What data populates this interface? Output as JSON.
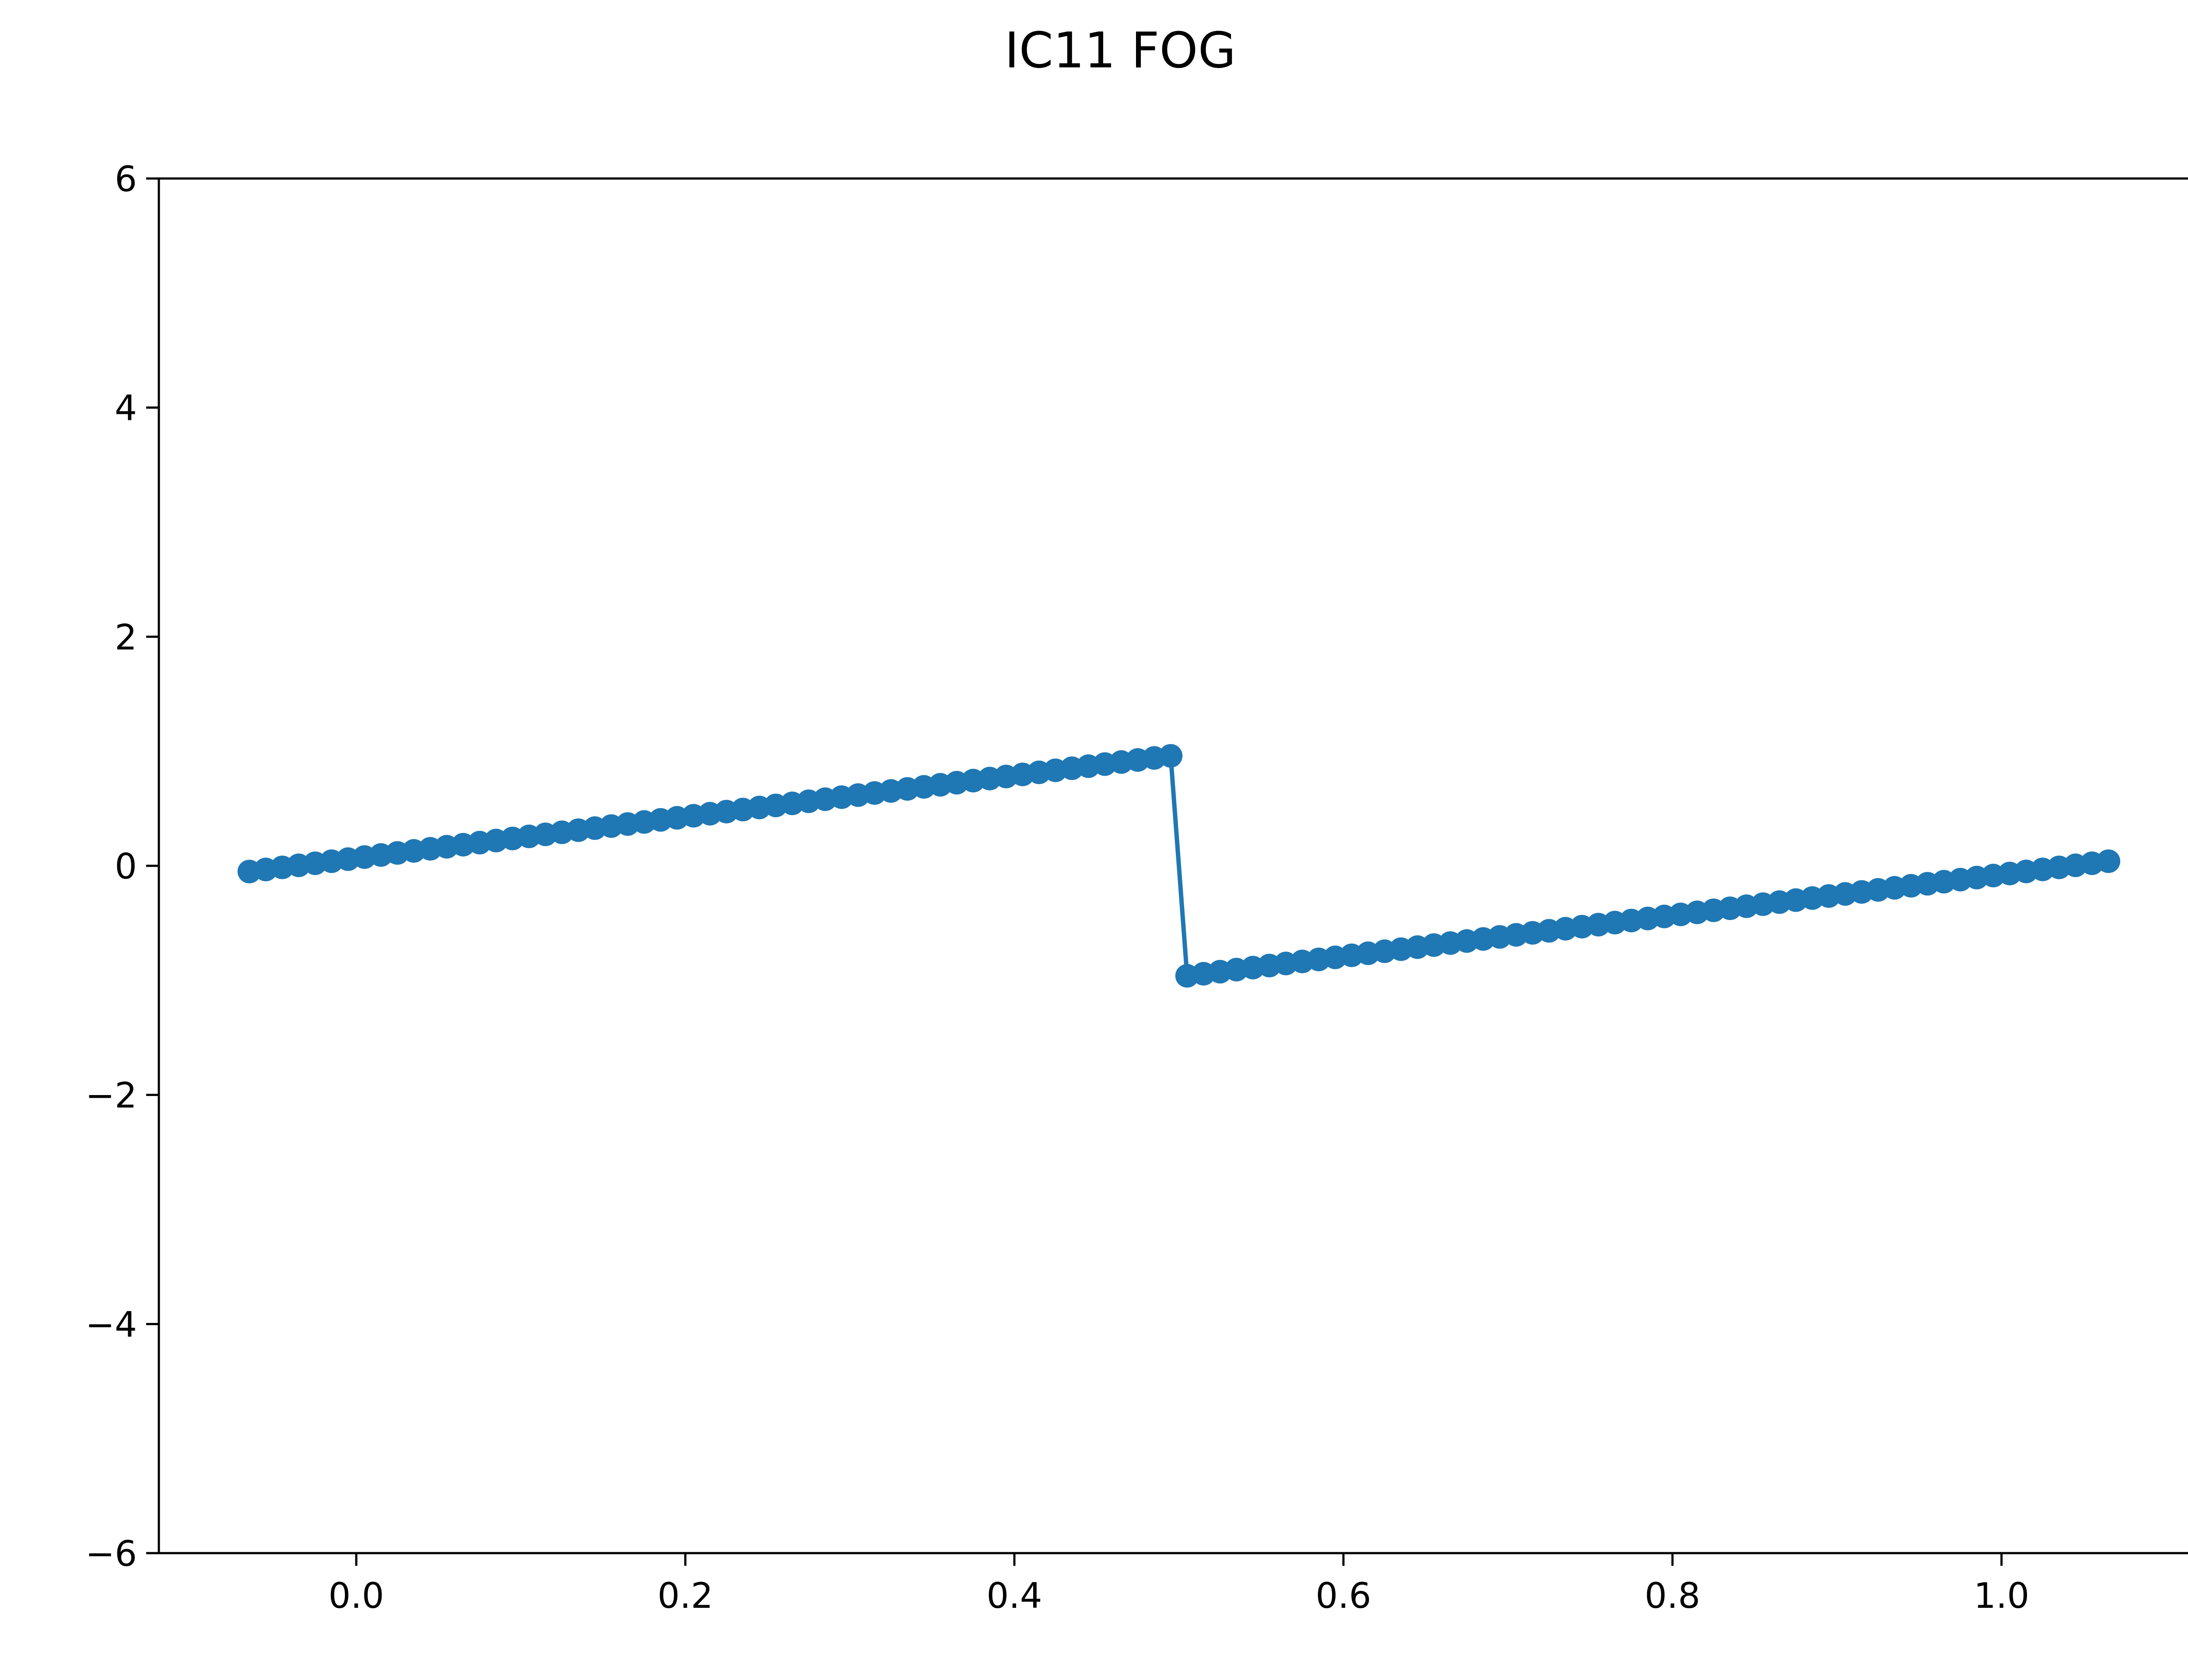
{
  "figure": {
    "title": "IC11 FOG"
  },
  "chart_data": {
    "type": "line",
    "title": "IC11 FOG",
    "xlabel": "",
    "ylabel": "",
    "xlim": [
      -0.12,
      1.12
    ],
    "ylim": [
      -6,
      6
    ],
    "grid": false,
    "legend": "none",
    "x_ticks": [
      0.0,
      0.2,
      0.4,
      0.6,
      0.8,
      1.0
    ],
    "x_tick_labels": [
      "0.0",
      "0.2",
      "0.4",
      "0.6",
      "0.8",
      "1.0"
    ],
    "y_ticks": [
      -6,
      -4,
      -2,
      0,
      2,
      4,
      6
    ],
    "y_tick_labels": [
      "−6",
      "−4",
      "−2",
      "0",
      "2",
      "4",
      "6"
    ],
    "colors": {
      "series": "#1f77b4",
      "axes": "#000000"
    },
    "series": [
      {
        "marker": "circle",
        "segments": [
          {
            "x_start": -0.065,
            "x_end": 0.495,
            "count": 57,
            "y_start": -0.05,
            "y_end": 0.96
          },
          {
            "x_start": 0.505,
            "x_end": 1.065,
            "count": 57,
            "y_start": -0.96,
            "y_end": 0.04
          }
        ]
      }
    ]
  }
}
